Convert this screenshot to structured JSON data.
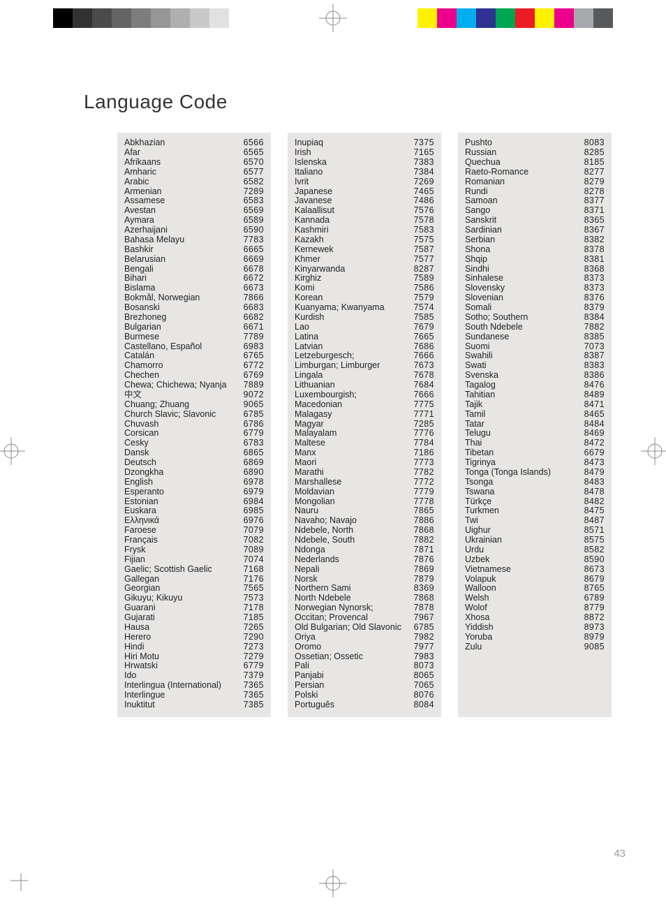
{
  "title": "Language Code",
  "page_number": "43",
  "background_color": "#ffffff",
  "column_background": "#e7e6e5",
  "text_color": "#222222",
  "title_color": "#333333",
  "title_fontsize": 28,
  "body_fontsize": 12.5,
  "page_number_color": "#999999",
  "top_swatches_left": [
    "#000000",
    "#323232",
    "#4b4b4b",
    "#646464",
    "#7d7d7d",
    "#969696",
    "#afafaf",
    "#c8c8c8",
    "#e1e1e1",
    "#ffffff"
  ],
  "top_swatches_right": [
    "#fff200",
    "#ec008c",
    "#00aeef",
    "#2e3192",
    "#00a651",
    "#ed1c24",
    "#fff200",
    "#ec008c",
    "#a7a9ac",
    "#58595b"
  ],
  "columns": [
    [
      {
        "lang": "Abkhazian",
        "code": "6566"
      },
      {
        "lang": "Afar",
        "code": "6565"
      },
      {
        "lang": "Afrikaans",
        "code": "6570"
      },
      {
        "lang": "Amharic",
        "code": "6577"
      },
      {
        "lang": "Arabic",
        "code": "6582"
      },
      {
        "lang": "Armenian",
        "code": "7289"
      },
      {
        "lang": "Assamese",
        "code": "6583"
      },
      {
        "lang": "Avestan",
        "code": "6569"
      },
      {
        "lang": "Aymara",
        "code": "6589"
      },
      {
        "lang": "Azerhaijani",
        "code": "6590"
      },
      {
        "lang": "Bahasa Melayu",
        "code": "7783"
      },
      {
        "lang": "Bashkir",
        "code": "6665"
      },
      {
        "lang": "Belarusian",
        "code": "6669"
      },
      {
        "lang": "Bengali",
        "code": "6678"
      },
      {
        "lang": "Bihari",
        "code": "6672"
      },
      {
        "lang": "Bislama",
        "code": "6673"
      },
      {
        "lang": "Bokmål, Norwegian",
        "code": "7866"
      },
      {
        "lang": "Bosanski",
        "code": "6683"
      },
      {
        "lang": "Brezhoneg",
        "code": "6682"
      },
      {
        "lang": "Bulgarian",
        "code": "6671"
      },
      {
        "lang": "Burmese",
        "code": "7789"
      },
      {
        "lang": "Castellano, Español",
        "code": "6983"
      },
      {
        "lang": "Catalán",
        "code": "6765"
      },
      {
        "lang": "Chamorro",
        "code": "6772"
      },
      {
        "lang": "Chechen",
        "code": "6769"
      },
      {
        "lang": "Chewa; Chichewa; Nyanja",
        "code": "7889"
      },
      {
        "lang": "中文",
        "code": "9072"
      },
      {
        "lang": "Chuang; Zhuang",
        "code": "9065"
      },
      {
        "lang": "Church Slavic; Slavonic",
        "code": "6785"
      },
      {
        "lang": "Chuvash",
        "code": "6786"
      },
      {
        "lang": "Corsican",
        "code": "6779"
      },
      {
        "lang": "Česky",
        "code": "6783"
      },
      {
        "lang": "Dansk",
        "code": "6865"
      },
      {
        "lang": "Deutsch",
        "code": "6869"
      },
      {
        "lang": "Dzongkha",
        "code": "6890"
      },
      {
        "lang": "English",
        "code": "6978"
      },
      {
        "lang": "Esperanto",
        "code": "6979"
      },
      {
        "lang": "Estonian",
        "code": "6984"
      },
      {
        "lang": "Euskara",
        "code": "6985"
      },
      {
        "lang": "Ελληνικά",
        "code": "6976"
      },
      {
        "lang": "Faroese",
        "code": "7079"
      },
      {
        "lang": "Français",
        "code": "7082"
      },
      {
        "lang": "Frysk",
        "code": "7089"
      },
      {
        "lang": "Fijian",
        "code": "7074"
      },
      {
        "lang": "Gaelic; Scottish Gaelic",
        "code": "7168"
      },
      {
        "lang": "Gallegan",
        "code": "7176"
      },
      {
        "lang": "Georgian",
        "code": "7565"
      },
      {
        "lang": "Gikuyu; Kikuyu",
        "code": "7573"
      },
      {
        "lang": "Guarani",
        "code": "7178"
      },
      {
        "lang": "Gujarati",
        "code": "7185"
      },
      {
        "lang": "Hausa",
        "code": "7265"
      },
      {
        "lang": "Herero",
        "code": "7290"
      },
      {
        "lang": "Hindi",
        "code": "7273"
      },
      {
        "lang": "Hiri Motu",
        "code": "7279"
      },
      {
        "lang": "Hrwatski",
        "code": "6779"
      },
      {
        "lang": "Ido",
        "code": "7379"
      },
      {
        "lang": "Interlingua (International)",
        "code": "7365"
      },
      {
        "lang": "Interlingue",
        "code": "7365"
      },
      {
        "lang": "Inuktitut",
        "code": "7385"
      }
    ],
    [
      {
        "lang": "Inupiaq",
        "code": "7375"
      },
      {
        "lang": "Irish",
        "code": "7165"
      },
      {
        "lang": "Íslenska",
        "code": "7383"
      },
      {
        "lang": "Italiano",
        "code": "7384"
      },
      {
        "lang": "Ivrit",
        "code": "7269"
      },
      {
        "lang": "Japanese",
        "code": "7465"
      },
      {
        "lang": "Javanese",
        "code": "7486"
      },
      {
        "lang": "Kalaallisut",
        "code": "7576"
      },
      {
        "lang": "Kannada",
        "code": "7578"
      },
      {
        "lang": "Kashmiri",
        "code": "7583"
      },
      {
        "lang": "Kazakh",
        "code": "7575"
      },
      {
        "lang": "Kernewek",
        "code": "7587"
      },
      {
        "lang": "Khmer",
        "code": "7577"
      },
      {
        "lang": "Kinyarwanda",
        "code": "8287"
      },
      {
        "lang": "Kirghiz",
        "code": "7589"
      },
      {
        "lang": "Komi",
        "code": "7586"
      },
      {
        "lang": "Korean",
        "code": "7579"
      },
      {
        "lang": "Kuanyama; Kwanyama",
        "code": "7574"
      },
      {
        "lang": "Kurdish",
        "code": "7585"
      },
      {
        "lang": "Lao",
        "code": "7679"
      },
      {
        "lang": "Latina",
        "code": "7665"
      },
      {
        "lang": "Latvian",
        "code": "7686"
      },
      {
        "lang": "Letzeburgesch;",
        "code": "7666"
      },
      {
        "lang": "Limburgan; Limburger",
        "code": "7673"
      },
      {
        "lang": "Lingala",
        "code": "7678"
      },
      {
        "lang": "Lithuanian",
        "code": "7684"
      },
      {
        "lang": "Luxembourgish;",
        "code": "7666"
      },
      {
        "lang": "Macedonian",
        "code": "7775"
      },
      {
        "lang": "Malagasy",
        "code": "7771"
      },
      {
        "lang": "Magyar",
        "code": "7285"
      },
      {
        "lang": "Malayalam",
        "code": "7776"
      },
      {
        "lang": "Maltese",
        "code": "7784"
      },
      {
        "lang": "Manx",
        "code": "7186"
      },
      {
        "lang": "Maori",
        "code": "7773"
      },
      {
        "lang": "Marathi",
        "code": "7782"
      },
      {
        "lang": "Marshallese",
        "code": "7772"
      },
      {
        "lang": "Moldavian",
        "code": "7779"
      },
      {
        "lang": "Mongolian",
        "code": "7778"
      },
      {
        "lang": "Nauru",
        "code": "7865"
      },
      {
        "lang": "Navaho; Navajo",
        "code": "7886"
      },
      {
        "lang": "Ndebele, North",
        "code": "7868"
      },
      {
        "lang": "Ndebele, South",
        "code": "7882"
      },
      {
        "lang": "Ndonga",
        "code": "7871"
      },
      {
        "lang": "Nederlands",
        "code": "7876"
      },
      {
        "lang": "Nepali",
        "code": "7869"
      },
      {
        "lang": "Norsk",
        "code": "7879"
      },
      {
        "lang": "Northern Sami",
        "code": "8369"
      },
      {
        "lang": "North Ndebele",
        "code": "7868"
      },
      {
        "lang": "Norwegian Nynorsk;",
        "code": "7878"
      },
      {
        "lang": "Occitan; Provencal",
        "code": "7967"
      },
      {
        "lang": "Old Bulgarian; Old Slavonic",
        "code": "6785"
      },
      {
        "lang": "Oriya",
        "code": "7982"
      },
      {
        "lang": "Oromo",
        "code": "7977"
      },
      {
        "lang": "Ossetian; Ossetic",
        "code": "7983"
      },
      {
        "lang": "Pali",
        "code": "8073"
      },
      {
        "lang": "Panjabi",
        "code": "8065"
      },
      {
        "lang": "Persian",
        "code": "7065"
      },
      {
        "lang": "Polski",
        "code": "8076"
      },
      {
        "lang": "Português",
        "code": "8084"
      }
    ],
    [
      {
        "lang": "Pushto",
        "code": "8083"
      },
      {
        "lang": "Russian",
        "code": "8285"
      },
      {
        "lang": "Quechua",
        "code": "8185"
      },
      {
        "lang": "Raeto-Romance",
        "code": "8277"
      },
      {
        "lang": "Romanian",
        "code": "8279"
      },
      {
        "lang": "Rundi",
        "code": "8278"
      },
      {
        "lang": "Samoan",
        "code": "8377"
      },
      {
        "lang": "Sango",
        "code": "8371"
      },
      {
        "lang": "Sanskrit",
        "code": "8365"
      },
      {
        "lang": "Sardinian",
        "code": "8367"
      },
      {
        "lang": "Serbian",
        "code": "8382"
      },
      {
        "lang": "Shona",
        "code": "8378"
      },
      {
        "lang": "Shqip",
        "code": "8381"
      },
      {
        "lang": "Sindhi",
        "code": "8368"
      },
      {
        "lang": "Sinhalese",
        "code": "8373"
      },
      {
        "lang": "Slovensky",
        "code": "8373"
      },
      {
        "lang": "Slovenian",
        "code": "8376"
      },
      {
        "lang": "Somali",
        "code": "8379"
      },
      {
        "lang": "Sotho; Southern",
        "code": "8384"
      },
      {
        "lang": "South Ndebele",
        "code": "7882"
      },
      {
        "lang": "Sundanese",
        "code": "8385"
      },
      {
        "lang": "Suomi",
        "code": "7073"
      },
      {
        "lang": "Swahili",
        "code": "8387"
      },
      {
        "lang": "Swati",
        "code": "8383"
      },
      {
        "lang": "Svenska",
        "code": "8386"
      },
      {
        "lang": "Tagalog",
        "code": "8476"
      },
      {
        "lang": "Tahitian",
        "code": "8489"
      },
      {
        "lang": "Tajik",
        "code": "8471"
      },
      {
        "lang": "Tamil",
        "code": "8465"
      },
      {
        "lang": "Tatar",
        "code": "8484"
      },
      {
        "lang": "Telugu",
        "code": "8469"
      },
      {
        "lang": "Thai",
        "code": "8472"
      },
      {
        "lang": "Tibetan",
        "code": "6679"
      },
      {
        "lang": "Tigrinya",
        "code": "8473"
      },
      {
        "lang": "Tonga (Tonga Islands)",
        "code": "8479"
      },
      {
        "lang": "Tsonga",
        "code": "8483"
      },
      {
        "lang": "Tswana",
        "code": "8478"
      },
      {
        "lang": "Türkçe",
        "code": "8482"
      },
      {
        "lang": "Turkmen",
        "code": "8475"
      },
      {
        "lang": "Twi",
        "code": "8487"
      },
      {
        "lang": "Uighur",
        "code": "8571"
      },
      {
        "lang": "Ukrainian",
        "code": "8575"
      },
      {
        "lang": "Urdu",
        "code": "8582"
      },
      {
        "lang": "Uzbek",
        "code": "8590"
      },
      {
        "lang": "Vietnamese",
        "code": "8673"
      },
      {
        "lang": "Volapuk",
        "code": "8679"
      },
      {
        "lang": "Walloon",
        "code": "8765"
      },
      {
        "lang": "Welsh",
        "code": "6789"
      },
      {
        "lang": "Wolof",
        "code": "8779"
      },
      {
        "lang": "Xhosa",
        "code": "8872"
      },
      {
        "lang": "Yiddish",
        "code": "8973"
      },
      {
        "lang": "Yoruba",
        "code": "8979"
      },
      {
        "lang": "Zulu",
        "code": "9085"
      }
    ]
  ]
}
